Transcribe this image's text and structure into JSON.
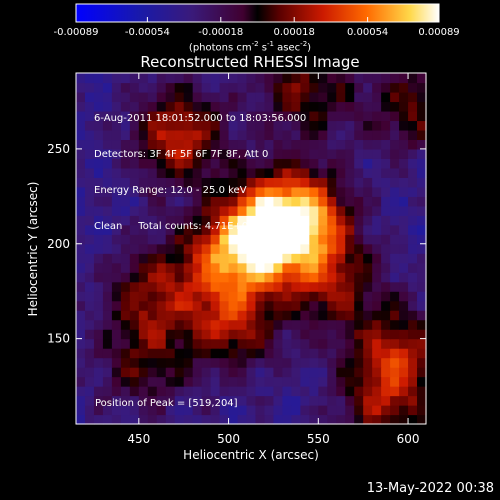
{
  "chart_data": {
    "type": "heatmap",
    "title": "Reconstructed RHESSI Image",
    "colorbar": {
      "ticks": [
        "-0.00089",
        "-0.00054",
        "-0.00018",
        "0.00018",
        "0.00054",
        "0.00089"
      ],
      "units_main": "(photons cm",
      "units_sup1": "-2",
      "units_mid": " s",
      "units_sup2": "-1",
      "units_end": " asec",
      "units_sup3": "-2",
      "units_close": ")",
      "range": [
        -0.00089,
        0.00089
      ]
    },
    "xlabel": "Heliocentric X (arcsec)",
    "ylabel": "Heliocentric Y (arcsec)",
    "xlim": [
      415,
      610
    ],
    "ylim": [
      105,
      290
    ],
    "xticks": [
      450,
      500,
      550,
      600
    ],
    "yticks": [
      150,
      200,
      250
    ],
    "info": {
      "time": "6-Aug-2011 18:01:52.000 to 18:03:56.000",
      "detectors": "Detectors: 3F 4F 5F 6F 7F 8F, Att 0",
      "energy": "Energy Range: 12.0 - 25.0 keV",
      "clean": "Clean",
      "counts": "Total counts: 4.71E+03"
    },
    "peak_label": "Position of Peak = [519,204]",
    "peak": [
      519,
      204
    ],
    "sources": [
      {
        "x": 519,
        "y": 204,
        "amp": 1.0
      },
      {
        "x": 540,
        "y": 212,
        "amp": 0.7
      },
      {
        "x": 495,
        "y": 190,
        "amp": 0.55
      },
      {
        "x": 470,
        "y": 255,
        "amp": 0.6
      },
      {
        "x": 455,
        "y": 172,
        "amp": 0.45
      },
      {
        "x": 555,
        "y": 178,
        "amp": 0.45
      },
      {
        "x": 590,
        "y": 140,
        "amp": 0.55
      },
      {
        "x": 540,
        "y": 280,
        "amp": 0.45
      },
      {
        "x": 600,
        "y": 270,
        "amp": 0.4
      },
      {
        "x": 450,
        "y": 135,
        "amp": 0.35
      },
      {
        "x": 500,
        "y": 155,
        "amp": 0.5
      },
      {
        "x": 585,
        "y": 110,
        "amp": 0.4
      }
    ]
  },
  "footer": {
    "timestamp": "13-May-2022 00:38"
  }
}
